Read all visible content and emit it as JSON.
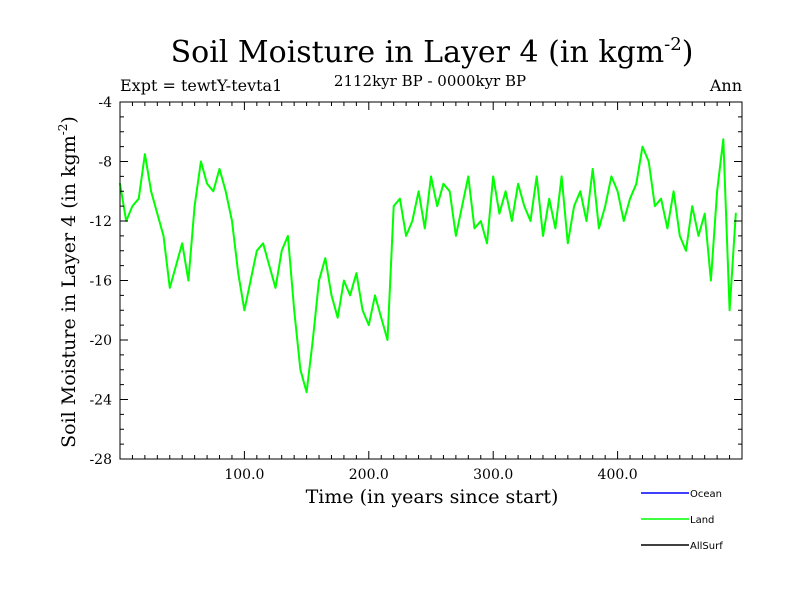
{
  "chart_data": {
    "type": "line",
    "title": "Soil Moisture in Layer 4 (in kgm",
    "title_superscript": "-2",
    "title_close": ")",
    "subtitle": "2112kyr BP - 0000kyr BP",
    "experiment_label": "Expt = tewtY-tevta1",
    "season_label": "Ann",
    "xlabel": "Time (in years since start)",
    "ylabel": "Soil Moisture in Layer 4 (in kgm",
    "ylabel_superscript": "-2",
    "ylabel_close": ")",
    "xlim": [
      0,
      500
    ],
    "ylim": [
      -28,
      -4
    ],
    "x_ticks": [
      100,
      200,
      300,
      400
    ],
    "x_tick_labels": [
      "100.0",
      "200.0",
      "300.0",
      "400.0"
    ],
    "y_ticks": [
      -4,
      -8,
      -12,
      -16,
      -20,
      -24,
      -28
    ],
    "y_tick_labels": [
      "-4",
      "-8",
      "-12",
      "-16",
      "-20",
      "-24",
      "-28"
    ],
    "grid": false,
    "legend_position": "bottom-right",
    "legend": [
      {
        "name": "Ocean",
        "color": "#0000ff"
      },
      {
        "name": "Land",
        "color": "#00ff00"
      },
      {
        "name": "AllSurf",
        "color": "#000000"
      }
    ],
    "series": [
      {
        "name": "Land",
        "color": "#00ff00",
        "x": [
          0,
          5,
          10,
          15,
          20,
          25,
          30,
          35,
          40,
          45,
          50,
          55,
          60,
          65,
          70,
          75,
          80,
          85,
          90,
          95,
          100,
          105,
          110,
          115,
          120,
          125,
          130,
          135,
          140,
          145,
          150,
          155,
          160,
          165,
          170,
          175,
          180,
          185,
          190,
          195,
          200,
          205,
          210,
          215,
          220,
          225,
          230,
          235,
          240,
          245,
          250,
          255,
          260,
          265,
          270,
          275,
          280,
          285,
          290,
          295,
          300,
          305,
          310,
          315,
          320,
          325,
          330,
          335,
          340,
          345,
          350,
          355,
          360,
          365,
          370,
          375,
          380,
          385,
          390,
          395,
          400,
          405,
          410,
          415,
          420,
          425,
          430,
          435,
          440,
          445,
          450,
          455,
          460,
          465,
          470,
          475,
          480,
          485,
          490,
          495
        ],
        "values": [
          -9.5,
          -12,
          -11,
          -10.5,
          -7.5,
          -10,
          -11.5,
          -13,
          -16.5,
          -15,
          -13.5,
          -16,
          -11,
          -8,
          -9.5,
          -10,
          -8.5,
          -10,
          -12,
          -15.5,
          -18,
          -16,
          -14,
          -13.5,
          -15,
          -16.5,
          -14,
          -13,
          -18,
          -22,
          -23.5,
          -20,
          -16,
          -14.5,
          -17,
          -18.5,
          -16,
          -17,
          -15.5,
          -18,
          -19,
          -17,
          -18.5,
          -20,
          -11,
          -10.5,
          -13,
          -12,
          -10,
          -12.5,
          -9,
          -11,
          -9.5,
          -10,
          -13,
          -11,
          -9,
          -12.5,
          -12,
          -13.5,
          -9,
          -11.5,
          -10,
          -12,
          -9.5,
          -11,
          -12,
          -9,
          -13,
          -10.5,
          -12.5,
          -9,
          -13.5,
          -11,
          -10,
          -12,
          -8.5,
          -12.5,
          -11,
          -9,
          -10,
          -12,
          -10.5,
          -9.5,
          -7,
          -8,
          -11,
          -10.5,
          -12.5,
          -10,
          -13,
          -14,
          -11,
          -13,
          -11.5,
          -16,
          -10,
          -6.5,
          -18,
          -11.5
        ]
      }
    ]
  }
}
